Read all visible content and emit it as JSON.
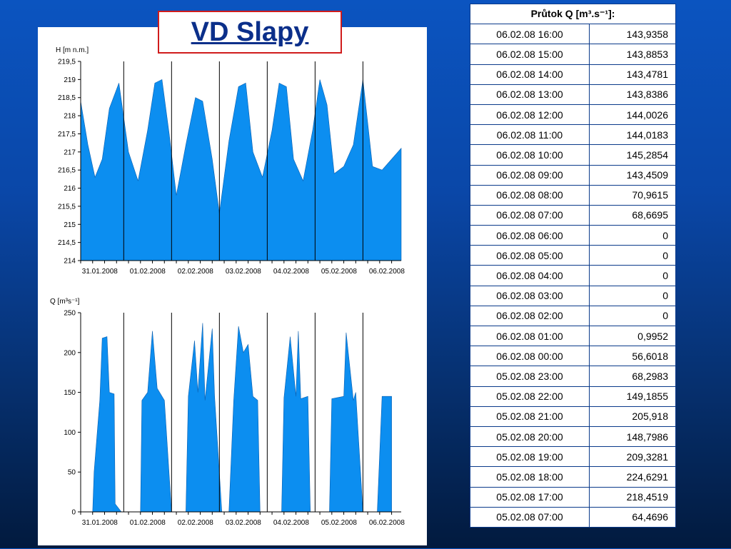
{
  "title": "VD Slapy",
  "table": {
    "header": "Průtok Q [m³.s⁻¹]:",
    "rows": [
      [
        "06.02.08 16:00",
        "143,9358"
      ],
      [
        "06.02.08 15:00",
        "143,8853"
      ],
      [
        "06.02.08 14:00",
        "143,4781"
      ],
      [
        "06.02.08 13:00",
        "143,8386"
      ],
      [
        "06.02.08 12:00",
        "144,0026"
      ],
      [
        "06.02.08 11:00",
        "144,0183"
      ],
      [
        "06.02.08 10:00",
        "145,2854"
      ],
      [
        "06.02.08 09:00",
        "143,4509"
      ],
      [
        "06.02.08 08:00",
        "70,9615"
      ],
      [
        "06.02.08 07:00",
        "68,6695"
      ],
      [
        "06.02.08 06:00",
        "0"
      ],
      [
        "06.02.08 05:00",
        "0"
      ],
      [
        "06.02.08 04:00",
        "0"
      ],
      [
        "06.02.08 03:00",
        "0"
      ],
      [
        "06.02.08 02:00",
        "0"
      ],
      [
        "06.02.08 01:00",
        "0,9952"
      ],
      [
        "06.02.08 00:00",
        "56,6018"
      ],
      [
        "05.02.08 23:00",
        "68,2983"
      ],
      [
        "05.02.08 22:00",
        "149,1855"
      ],
      [
        "05.02.08 21:00",
        "205,918"
      ],
      [
        "05.02.08 20:00",
        "148,7986"
      ],
      [
        "05.02.08 19:00",
        "209,3281"
      ],
      [
        "05.02.08 18:00",
        "224,6291"
      ],
      [
        "05.02.08 17:00",
        "218,4519"
      ],
      [
        "05.02.08 07:00",
        "64,4696"
      ]
    ]
  },
  "colors": {
    "fill": "#0c8ef0",
    "title_border": "#d01c1c",
    "title_text": "#0b2f8a"
  },
  "chart_data": [
    {
      "type": "area",
      "ylabel": "H [m n.m.]",
      "ylim": [
        214,
        219.5
      ],
      "yticks": [
        "214",
        "214,5",
        "215",
        "215,5",
        "216",
        "216,5",
        "217",
        "217,5",
        "218",
        "218,5",
        "219",
        "219,5"
      ],
      "categories": [
        "31.01.2008",
        "01.02.2008",
        "02.02.2008",
        "03.02.2008",
        "04.02.2008",
        "05.02.2008",
        "06.02.2008"
      ],
      "x_span_days": 6.7,
      "series": [
        {
          "x": [
            0.0,
            0.15,
            0.3,
            0.45,
            0.6,
            0.8,
            1.0,
            1.2,
            1.4,
            1.55,
            1.7,
            1.85,
            2.0,
            2.2,
            2.4,
            2.55,
            2.75,
            2.9,
            3.1,
            3.3,
            3.45,
            3.6,
            3.8,
            4.0,
            4.15,
            4.3,
            4.45,
            4.65,
            4.85,
            5.0,
            5.15,
            5.3,
            5.5,
            5.7,
            5.9,
            6.1,
            6.3,
            6.5,
            6.7
          ],
          "y": [
            218.4,
            217.2,
            216.3,
            216.8,
            218.2,
            218.9,
            217.0,
            216.2,
            217.6,
            218.9,
            219.0,
            217.5,
            215.8,
            217.2,
            218.5,
            218.4,
            216.8,
            215.3,
            217.3,
            218.8,
            218.9,
            217.0,
            216.3,
            217.6,
            218.9,
            218.8,
            216.8,
            216.2,
            217.6,
            219.0,
            218.3,
            216.4,
            216.6,
            217.2,
            219.0,
            216.6,
            216.5,
            216.8,
            217.1
          ]
        }
      ]
    },
    {
      "type": "area",
      "ylabel": "Q [m³s⁻¹]",
      "ylim": [
        0,
        250
      ],
      "yticks": [
        "0",
        "50",
        "100",
        "150",
        "200",
        "250"
      ],
      "categories": [
        "31.01.2008",
        "01.02.2008",
        "02.02.2008",
        "03.02.2008",
        "04.02.2008",
        "05.02.2008",
        "06.02.2008"
      ],
      "x_span_days": 6.7,
      "series": [
        {
          "x": [
            0.0,
            0.25,
            0.28,
            0.4,
            0.45,
            0.55,
            0.6,
            0.7,
            0.72,
            0.85,
            0.9,
            0.95,
            1.0,
            1.25,
            1.28,
            1.4,
            1.5,
            1.6,
            1.65,
            1.75,
            1.9,
            1.92,
            2.2,
            2.25,
            2.38,
            2.45,
            2.55,
            2.6,
            2.75,
            2.8,
            2.95,
            3.1,
            3.2,
            3.3,
            3.4,
            3.5,
            3.6,
            3.7,
            3.75,
            3.9,
            4.2,
            4.25,
            4.38,
            4.5,
            4.55,
            4.6,
            4.75,
            4.8,
            4.9,
            5.2,
            5.25,
            5.5,
            5.55,
            5.7,
            5.75,
            5.9,
            6.05,
            6.2,
            6.3,
            6.5
          ],
          "y": [
            0,
            0,
            50,
            140,
            218,
            220,
            150,
            148,
            10,
            0,
            0,
            0,
            0,
            0,
            140,
            150,
            227,
            155,
            150,
            140,
            0,
            0,
            0,
            145,
            215,
            150,
            237,
            140,
            230,
            145,
            0,
            0,
            140,
            233,
            200,
            210,
            145,
            140,
            0,
            0,
            0,
            143,
            220,
            145,
            227,
            142,
            145,
            0,
            0,
            0,
            142,
            145,
            225,
            140,
            150,
            0,
            0,
            0,
            145,
            145
          ]
        }
      ]
    }
  ]
}
